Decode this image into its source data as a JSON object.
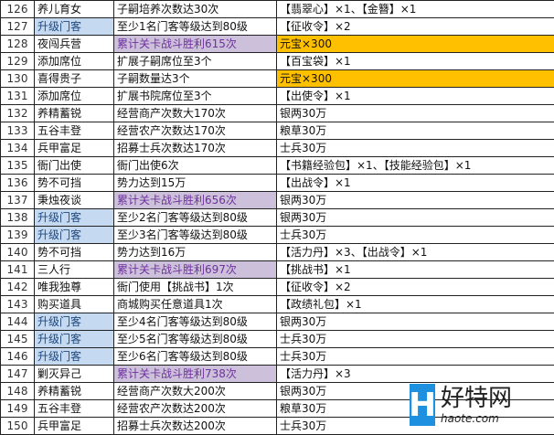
{
  "colors": {
    "upgrade_bg": "#c5d9f1",
    "battle_bg": "#ccc0da",
    "battle_text": "#7030a0",
    "yuanbao_bg": "#ffc000"
  },
  "rows": [
    {
      "no": "126",
      "name": "养儿育女",
      "cond": "子嗣培养次数达30次",
      "reward": "【翡翠心】×1、【金簪】×1",
      "name_style": "",
      "cond_style": "",
      "reward_style": ""
    },
    {
      "no": "127",
      "name": "升级门客",
      "cond": "至少1名门客等级达到80级",
      "reward": "【征收令】×2",
      "name_style": "blue",
      "cond_style": "",
      "reward_style": ""
    },
    {
      "no": "128",
      "name": "夜闯兵营",
      "cond": "累计关卡战斗胜利615次",
      "reward": "元宝×300",
      "name_style": "",
      "cond_style": "purple",
      "reward_style": "orange"
    },
    {
      "no": "129",
      "name": "添加席位",
      "cond": "扩展子嗣席位至3个",
      "reward": "【百宝袋】×1",
      "name_style": "",
      "cond_style": "",
      "reward_style": ""
    },
    {
      "no": "130",
      "name": "喜得贵子",
      "cond": "子嗣数量达3个",
      "reward": "元宝×300",
      "name_style": "",
      "cond_style": "",
      "reward_style": "orange"
    },
    {
      "no": "131",
      "name": "添加席位",
      "cond": "扩展书院席位至3个",
      "reward": "【出使令】×1",
      "name_style": "",
      "cond_style": "",
      "reward_style": ""
    },
    {
      "no": "132",
      "name": "养精蓄锐",
      "cond": "经营商产次数大170次",
      "reward": "银两30万",
      "name_style": "",
      "cond_style": "",
      "reward_style": ""
    },
    {
      "no": "133",
      "name": "五谷丰登",
      "cond": "经营农产次数达170次",
      "reward": "粮草30万",
      "name_style": "",
      "cond_style": "",
      "reward_style": ""
    },
    {
      "no": "134",
      "name": "兵甲富足",
      "cond": "招募士兵次数达170次",
      "reward": "士兵30万",
      "name_style": "",
      "cond_style": "",
      "reward_style": ""
    },
    {
      "no": "135",
      "name": "衙门出使",
      "cond": "衙门出使6次",
      "reward": "【书籍经验包】×1、【技能经验包】×1",
      "name_style": "",
      "cond_style": "",
      "reward_style": ""
    },
    {
      "no": "136",
      "name": "势不可挡",
      "cond": "势力达到15万",
      "reward": "【出战令】×1",
      "name_style": "",
      "cond_style": "",
      "reward_style": ""
    },
    {
      "no": "137",
      "name": "秉烛夜谈",
      "cond": "累计关卡战斗胜利656次",
      "reward": "银两30万",
      "name_style": "",
      "cond_style": "purple",
      "reward_style": ""
    },
    {
      "no": "138",
      "name": "升级门客",
      "cond": "至少2名门客等级达到80级",
      "reward": "银两30万",
      "name_style": "blue",
      "cond_style": "",
      "reward_style": ""
    },
    {
      "no": "139",
      "name": "升级门客",
      "cond": "至少3名门客等级达到80级",
      "reward": "士兵30万",
      "name_style": "blue",
      "cond_style": "",
      "reward_style": ""
    },
    {
      "no": "140",
      "name": "势不可挡",
      "cond": "势力达到16万",
      "reward": "【活力丹】×3、【出战令】×1",
      "name_style": "",
      "cond_style": "",
      "reward_style": ""
    },
    {
      "no": "141",
      "name": "三人行",
      "cond": "累计关卡战斗胜利697次",
      "reward": "【挑战书】×1",
      "name_style": "",
      "cond_style": "purple",
      "reward_style": ""
    },
    {
      "no": "142",
      "name": "唯我独尊",
      "cond": "衙门使用【挑战书】1次",
      "reward": "【征收令】×2",
      "name_style": "",
      "cond_style": "",
      "reward_style": ""
    },
    {
      "no": "143",
      "name": "购买道具",
      "cond": "商城购买任意道具1次",
      "reward": "【政绩礼包】×1",
      "name_style": "",
      "cond_style": "",
      "reward_style": ""
    },
    {
      "no": "144",
      "name": "升级门客",
      "cond": "至少4名门客等级达到80级",
      "reward": "银两30万",
      "name_style": "blue",
      "cond_style": "",
      "reward_style": ""
    },
    {
      "no": "145",
      "name": "升级门客",
      "cond": "至少5名门客等级达到80级",
      "reward": "士兵30万",
      "name_style": "blue",
      "cond_style": "",
      "reward_style": ""
    },
    {
      "no": "146",
      "name": "升级门客",
      "cond": "至少6名门客等级达到80级",
      "reward": "士兵30万",
      "name_style": "blue",
      "cond_style": "",
      "reward_style": ""
    },
    {
      "no": "147",
      "name": "剿灭异己",
      "cond": "累计关卡战斗胜利738次",
      "reward": "【活力丹】×3",
      "name_style": "",
      "cond_style": "purple",
      "reward_style": ""
    },
    {
      "no": "148",
      "name": "养精蓄锐",
      "cond": "经营商产次数大200次",
      "reward": "银两30万",
      "name_style": "",
      "cond_style": "",
      "reward_style": ""
    },
    {
      "no": "149",
      "name": "五谷丰登",
      "cond": "经营农产次数达200次",
      "reward": "粮草30万",
      "name_style": "",
      "cond_style": "",
      "reward_style": ""
    },
    {
      "no": "150",
      "name": "兵甲富足",
      "cond": "招募士兵次数达200次",
      "reward": "士兵30万",
      "name_style": "",
      "cond_style": "",
      "reward_style": ""
    }
  ],
  "watermark": {
    "mark": "H",
    "cn": "好特网",
    "en": "haote.com"
  }
}
